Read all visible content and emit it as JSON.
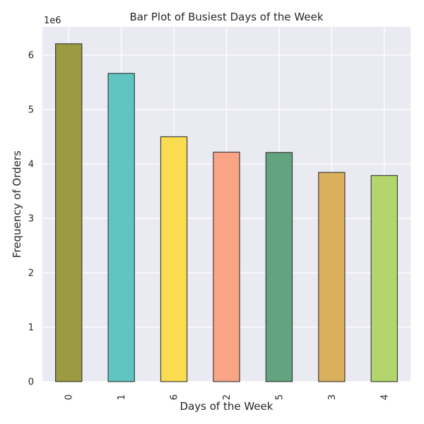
{
  "chart_data": {
    "type": "bar",
    "title": "Bar Plot of Busiest Days of the Week",
    "xlabel": "Days of the Week",
    "ylabel": "Frequency of Orders",
    "y_offset_label": "1e6",
    "categories": [
      "0",
      "1",
      "6",
      "2",
      "5",
      "3",
      "4"
    ],
    "values": [
      6209000,
      5665000,
      4500000,
      4217000,
      4211000,
      3845000,
      3787000
    ],
    "colors": [
      "#9c9b43",
      "#60c4c1",
      "#f9dd4e",
      "#f9a585",
      "#64a37f",
      "#d9b15e",
      "#b2d66b"
    ],
    "ylim": [
      0,
      6520000
    ],
    "yticks": [
      0,
      1000000,
      2000000,
      3000000,
      4000000,
      5000000,
      6000000
    ],
    "ytick_labels": [
      "0",
      "1",
      "2",
      "3",
      "4",
      "5",
      "6"
    ],
    "grid": true,
    "background": "#eaeaf2"
  }
}
